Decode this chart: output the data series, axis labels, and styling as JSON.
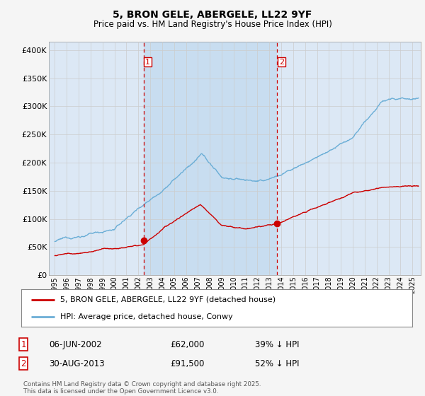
{
  "title": "5, BRON GELE, ABERGELE, LL22 9YF",
  "subtitle": "Price paid vs. HM Land Registry's House Price Index (HPI)",
  "ylabel_ticks": [
    "£0",
    "£50K",
    "£100K",
    "£150K",
    "£200K",
    "£250K",
    "£300K",
    "£350K",
    "£400K"
  ],
  "ytick_values": [
    0,
    50000,
    100000,
    150000,
    200000,
    250000,
    300000,
    350000,
    400000
  ],
  "ylim": [
    0,
    415000
  ],
  "xlim_start": 1994.5,
  "xlim_end": 2025.7,
  "vline1_x": 2002.44,
  "vline2_x": 2013.66,
  "sale1_marker_x": 2002.44,
  "sale1_marker_y": 62000,
  "sale2_marker_x": 2013.66,
  "sale2_marker_y": 91500,
  "sale1_date": "06-JUN-2002",
  "sale1_price": "£62,000",
  "sale1_hpi": "39% ↓ HPI",
  "sale2_date": "30-AUG-2013",
  "sale2_price": "£91,500",
  "sale2_hpi": "52% ↓ HPI",
  "legend_line1": "5, BRON GELE, ABERGELE, LL22 9YF (detached house)",
  "legend_line2": "HPI: Average price, detached house, Conwy",
  "footer": "Contains HM Land Registry data © Crown copyright and database right 2025.\nThis data is licensed under the Open Government Licence v3.0.",
  "hpi_color": "#6baed6",
  "sale_color": "#cc0000",
  "vline_color": "#cc0000",
  "bg_color": "#dce8f5",
  "shade_color": "#c8ddf0",
  "fig_bg": "#f5f5f5",
  "grid_color": "#cccccc"
}
